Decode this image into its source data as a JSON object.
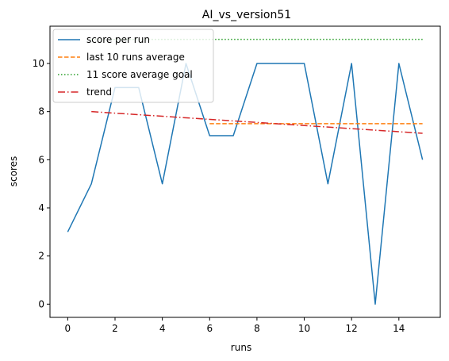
{
  "chart_data": {
    "type": "line",
    "title": "AI_vs_version51",
    "xlabel": "runs",
    "ylabel": "scores",
    "xlim": [
      -0.75,
      15.75
    ],
    "ylim": [
      -0.55,
      11.55
    ],
    "x_ticks": [
      0,
      2,
      4,
      6,
      8,
      10,
      12,
      14
    ],
    "y_ticks": [
      0,
      2,
      4,
      6,
      8,
      10
    ],
    "grid": false,
    "legend_position": "top-left",
    "series": [
      {
        "name": "score per run",
        "style": "solid",
        "color": "#1f77b4",
        "x": [
          0,
          1,
          2,
          3,
          4,
          5,
          6,
          7,
          8,
          9,
          10,
          11,
          12,
          13,
          14,
          15
        ],
        "y": [
          3,
          5,
          9,
          9,
          5,
          10,
          7,
          7,
          10,
          10,
          10,
          5,
          10,
          0,
          10,
          6
        ]
      },
      {
        "name": "last 10 runs average",
        "style": "dashed",
        "color": "#ff7f0e",
        "x": [
          6,
          15
        ],
        "y": [
          7.5,
          7.5
        ]
      },
      {
        "name": "11 score average goal",
        "style": "dotted",
        "color": "#2ca02c",
        "x": [
          1,
          15
        ],
        "y": [
          11,
          11
        ]
      },
      {
        "name": "trend",
        "style": "dashdot",
        "color": "#d62728",
        "x": [
          1,
          15
        ],
        "y": [
          8.0,
          7.1
        ]
      }
    ]
  }
}
